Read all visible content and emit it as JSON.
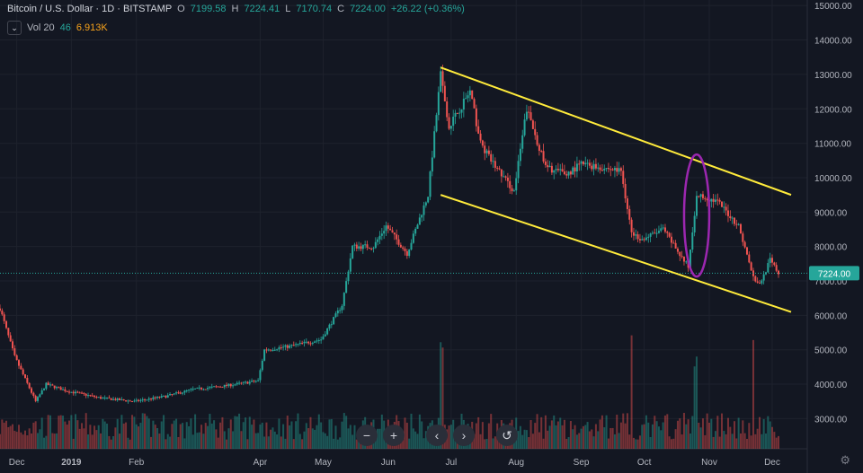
{
  "legend": {
    "symbol": "Bitcoin / U.S. Dollar · 1D · BITSTAMP",
    "open_label": "O",
    "open": "7199.58",
    "high_label": "H",
    "high": "7224.41",
    "low_label": "L",
    "low": "7170.74",
    "close_label": "C",
    "close": "7224.00",
    "change": "+26.22 (+0.36%)"
  },
  "volume": {
    "label": "Vol 20",
    "value1": "46",
    "value2": "6.913K",
    "chevron": "chevron-down-icon"
  },
  "price_badge": "7224.00",
  "nav_icons": [
    "minus-icon",
    "plus-icon",
    "chevron-left-icon",
    "chevron-right-icon",
    "reset-icon"
  ],
  "nav_glyphs": {
    "minus": "−",
    "plus": "+",
    "left": "‹",
    "right": "›",
    "reset": "↺"
  },
  "settings_icon": "gear-icon",
  "gear_glyph": "⚙",
  "colors": {
    "up": "#26a69a",
    "down": "#ef5350",
    "trendline": "#ffeb3b",
    "ellipse": "#9c27b0",
    "badge": "#26a69a",
    "background": "#131722"
  },
  "chart_data": {
    "type": "candlestick",
    "yaxis_ticks": [
      "15000.00",
      "14000.00",
      "13000.00",
      "12000.00",
      "11000.00",
      "10000.00",
      "9000.00",
      "8000.00",
      "7000.00",
      "6000.00",
      "5000.00",
      "4000.00",
      "3000.00"
    ],
    "xaxis_ticks": [
      "Dec",
      "2019",
      "Feb",
      "Apr",
      "May",
      "Jun",
      "Jul",
      "Aug",
      "Sep",
      "Oct",
      "Nov",
      "Dec"
    ],
    "ylim": [
      2400,
      15000
    ],
    "last_price": 7224.0,
    "price_path": [
      [
        "2018-11-28",
        6200
      ],
      [
        "2018-12-05",
        4800
      ],
      [
        "2018-12-15",
        3500
      ],
      [
        "2018-12-20",
        4000
      ],
      [
        "2018-12-30",
        3800
      ],
      [
        "2019-01-15",
        3600
      ],
      [
        "2019-01-31",
        3500
      ],
      [
        "2019-02-15",
        3650
      ],
      [
        "2019-02-28",
        3850
      ],
      [
        "2019-03-15",
        3950
      ],
      [
        "2019-03-31",
        4100
      ],
      [
        "2019-04-03",
        5000
      ],
      [
        "2019-04-15",
        5100
      ],
      [
        "2019-04-30",
        5300
      ],
      [
        "2019-05-10",
        6300
      ],
      [
        "2019-05-15",
        8000
      ],
      [
        "2019-05-25",
        8000
      ],
      [
        "2019-05-31",
        8600
      ],
      [
        "2019-06-10",
        7800
      ],
      [
        "2019-06-20",
        9500
      ],
      [
        "2019-06-26",
        13000
      ],
      [
        "2019-06-30",
        11500
      ],
      [
        "2019-07-05",
        12000
      ],
      [
        "2019-07-10",
        12500
      ],
      [
        "2019-07-15",
        11000
      ],
      [
        "2019-07-20",
        10500
      ],
      [
        "2019-07-31",
        9600
      ],
      [
        "2019-08-06",
        12000
      ],
      [
        "2019-08-15",
        10300
      ],
      [
        "2019-08-25",
        10100
      ],
      [
        "2019-09-01",
        10400
      ],
      [
        "2019-09-10",
        10300
      ],
      [
        "2019-09-20",
        10200
      ],
      [
        "2019-09-25",
        8400
      ],
      [
        "2019-09-30",
        8200
      ],
      [
        "2019-10-10",
        8500
      ],
      [
        "2019-10-22",
        7400
      ],
      [
        "2019-10-26",
        9500
      ],
      [
        "2019-11-05",
        9300
      ],
      [
        "2019-11-15",
        8600
      ],
      [
        "2019-11-22",
        7100
      ],
      [
        "2019-11-25",
        6900
      ],
      [
        "2019-11-30",
        7600
      ],
      [
        "2019-12-04",
        7224
      ]
    ],
    "volume_series": "Vol 20",
    "annotations": {
      "upper_trendline": [
        [
          "2019-06-26",
          13200
        ],
        [
          "2019-12-10",
          9500
        ]
      ],
      "lower_trendline": [
        [
          "2019-06-26",
          9500
        ],
        [
          "2019-12-10",
          6100
        ]
      ],
      "ellipse": {
        "center": [
          "2019-10-26",
          8900
        ],
        "note": "purple ellipse highlighting late-October spike"
      }
    }
  }
}
